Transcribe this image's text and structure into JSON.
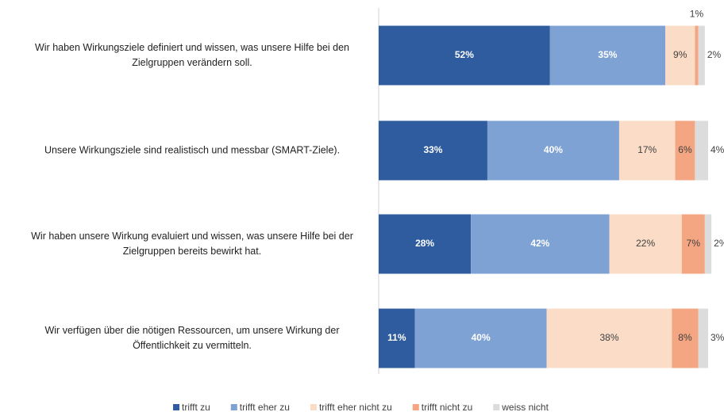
{
  "chart_data": {
    "type": "stacked-barh",
    "categories": [
      "Wir haben Wirkungsziele definiert und wissen, was unsere Hilfe bei den Zielgruppen verändern soll.",
      "Unsere Wirkungsziele sind realistisch und messbar (SMART-Ziele).",
      "Wir haben unsere Wirkung evaluiert und wissen, was unsere Hilfe bei der Zielgruppen bereits bewirkt hat.",
      "Wir verfügen über die nötigen Ressourcen, um unsere Wirkung der Öffentlichkeit zu vermitteln."
    ],
    "series": [
      {
        "name": "trifft zu",
        "color": "#2e5c9e",
        "values": [
          52,
          33,
          28,
          11
        ],
        "value_labels": [
          "52%",
          "33%",
          "28%",
          "11%"
        ]
      },
      {
        "name": "trifft eher zu",
        "color": "#7fa2d4",
        "values": [
          35,
          40,
          42,
          40
        ],
        "value_labels": [
          "35%",
          "40%",
          "42%",
          "40%"
        ]
      },
      {
        "name": "trifft eher nicht zu",
        "color": "#fbdcc7",
        "values": [
          9,
          17,
          22,
          38
        ],
        "value_labels": [
          "9%",
          "17%",
          "22%",
          "38%"
        ]
      },
      {
        "name": "trifft nicht zu",
        "color": "#f4a582",
        "values": [
          1,
          6,
          7,
          8
        ],
        "value_labels": [
          "1%",
          "6%",
          "7%",
          "8%"
        ]
      },
      {
        "name": "weiss nicht",
        "color": "#dcdcdc",
        "values": [
          2,
          4,
          2,
          3
        ],
        "value_labels": [
          "2%",
          "4%",
          "2%",
          "3%"
        ]
      }
    ],
    "xlim": [
      0,
      100
    ],
    "legend": "bottom"
  }
}
